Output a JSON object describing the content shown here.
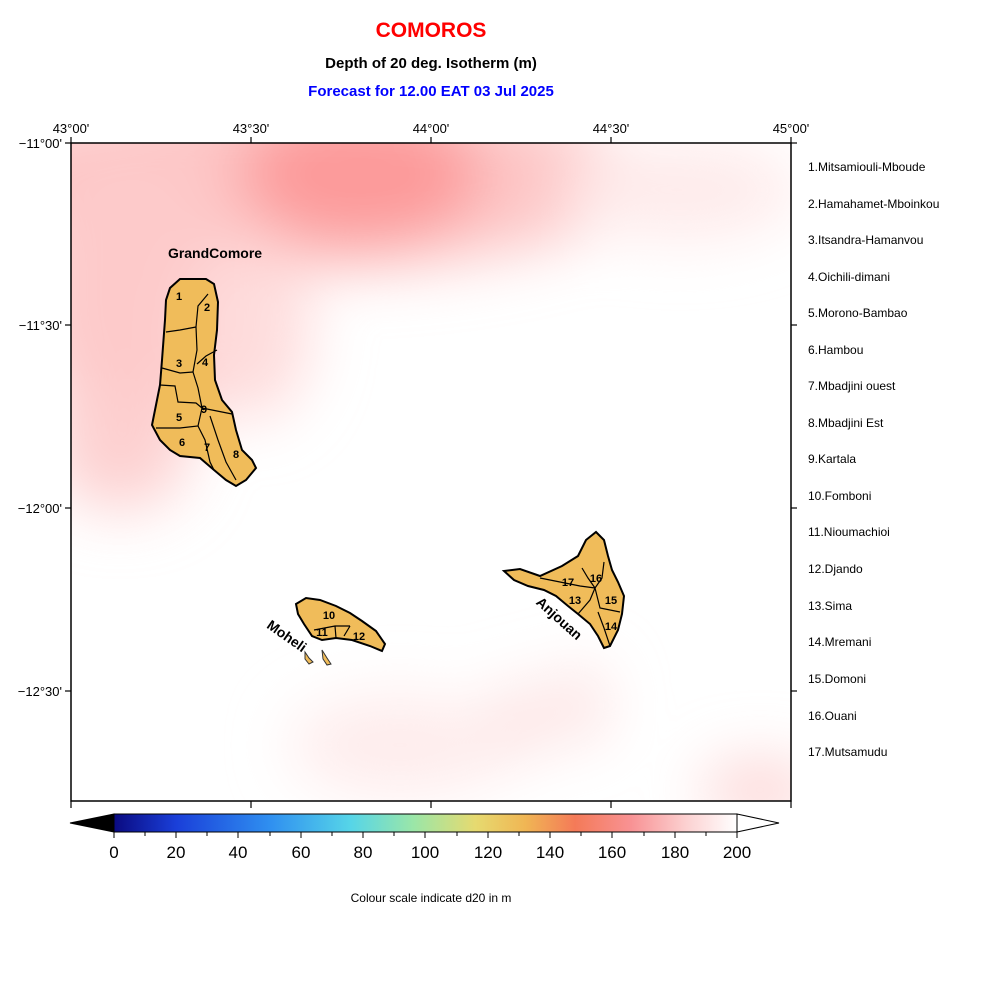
{
  "header": {
    "country": "COMOROS",
    "variable": "Depth of 20 deg. Isotherm (m)",
    "forecast": "Forecast for  12.00 EAT 03 Jul 2025"
  },
  "axes": {
    "lon_ticks": [
      "43°00'",
      "43°30'",
      "44°00'",
      "44°30'",
      "45°00'"
    ],
    "lat_ticks": [
      "−11°00'",
      "−11°30'",
      "−12°00'",
      "−12°30'"
    ]
  },
  "islands": {
    "grande": "GrandComore",
    "moheli": "Moheli",
    "anjouan": "Anjouan"
  },
  "districts": [
    "1.Mitsamiouli-Mboude",
    "2.Hamahamet-Mboinkou",
    "3.Itsandra-Hamanvou",
    "4.Oichili-dimani",
    "5.Morono-Bambao",
    "6.Hambou",
    "7.Mbadjini ouest",
    "8.Mbadjini Est",
    "9.Kartala",
    "10.Fomboni",
    "11.Nioumachioi",
    "12.Djando",
    "13.Sima",
    "14.Mremani",
    "15.Domoni",
    "16.Ouani",
    "17.Mutsamudu"
  ],
  "district_numbers": [
    "1",
    "2",
    "3",
    "4",
    "5",
    "6",
    "7",
    "8",
    "9",
    "10",
    "11",
    "12",
    "13",
    "14",
    "15",
    "16",
    "17"
  ],
  "colorbar": {
    "ticks": [
      "0",
      "20",
      "40",
      "60",
      "80",
      "100",
      "120",
      "140",
      "160",
      "180",
      "200"
    ],
    "min": 0,
    "max": 200,
    "caption": "Colour scale indicate d20 in m"
  },
  "colors": {
    "land": "#f0bc5a",
    "title": "#ff0000",
    "subtitle": "#0000ff"
  }
}
